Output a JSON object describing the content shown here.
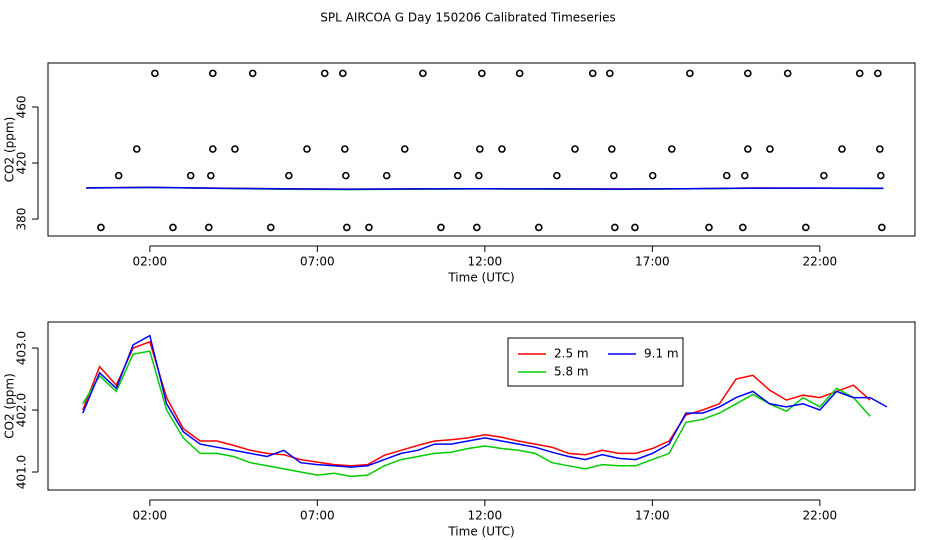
{
  "chart_data": [
    {
      "type": "scatter",
      "title": "SPL AIRCOA G  Day 150206  Calibrated Timeseries",
      "x_label": "Time (UTC)",
      "y_label": "CO2 (ppm)",
      "xlim": [
        -1.04,
        24.84
      ],
      "ylim": [
        367.9,
        491.4
      ],
      "xticks": [
        {
          "value": 2,
          "label": "02:00"
        },
        {
          "value": 7,
          "label": "07:00"
        },
        {
          "value": 12,
          "label": "12:00"
        },
        {
          "value": 17,
          "label": "17:00"
        },
        {
          "value": 22,
          "label": "22:00"
        }
      ],
      "yticks": [
        380,
        420,
        460
      ],
      "color": "#000000",
      "x": [
        2.15,
        3.88,
        5.07,
        7.22,
        7.76,
        10.15,
        11.91,
        13.04,
        15.22,
        15.73,
        18.12,
        19.85,
        21.04,
        23.19,
        23.73,
        1.61,
        3.88,
        4.54,
        6.69,
        7.82,
        9.61,
        11.85,
        12.51,
        14.69,
        15.79,
        17.58,
        19.85,
        20.51,
        22.66,
        23.79,
        1.07,
        3.22,
        3.82,
        6.15,
        7.85,
        9.07,
        11.19,
        11.82,
        14.15,
        15.85,
        17.01,
        19.22,
        19.76,
        22.12,
        23.82,
        0.54,
        2.69,
        3.76,
        5.61,
        7.88,
        8.54,
        10.69,
        11.76,
        13.61,
        15.88,
        16.48,
        18.69,
        19.7,
        21.58,
        23.85
      ],
      "values": [
        484,
        484,
        484,
        484,
        484,
        484,
        484,
        484,
        484,
        484,
        484,
        484,
        484,
        484,
        484,
        430,
        430,
        430,
        430,
        430,
        430,
        430,
        430,
        430,
        430,
        430,
        430,
        430,
        430,
        430,
        411,
        411,
        411,
        411,
        411,
        411,
        411,
        411,
        411,
        411,
        411,
        411,
        411,
        411,
        411,
        374,
        374,
        374,
        374,
        374,
        374,
        374,
        374,
        374,
        374,
        374,
        374,
        374,
        374,
        374
      ],
      "lines": {
        "x": [
          0.1,
          2,
          4,
          6,
          8,
          10,
          12,
          14,
          16,
          18,
          20,
          22,
          23.9
        ],
        "series": [
          {
            "color": "#ff0000",
            "values": [
              402.3,
              402.6,
              402.1,
              401.6,
              401.4,
              401.6,
              401.7,
              401.6,
              401.5,
              401.7,
              402.2,
              402.1,
              401.9
            ]
          },
          {
            "color": "#00cd00",
            "values": [
              402.2,
              402.5,
              401.9,
              401.3,
              401.0,
              401.3,
              401.5,
              401.3,
              401.2,
              401.5,
              402.0,
              402.0,
              401.8
            ]
          },
          {
            "color": "#0000ff",
            "values": [
              402.2,
              402.6,
              402.0,
              401.5,
              401.3,
              401.5,
              401.6,
              401.5,
              401.4,
              401.6,
              402.1,
              402.1,
              402.0
            ]
          }
        ]
      }
    },
    {
      "type": "line",
      "x_label": "Time (UTC)",
      "y_label": "CO2 (ppm)",
      "xlim": [
        -1.04,
        24.84
      ],
      "ylim": [
        400.71,
        403.42
      ],
      "xticks": [
        {
          "value": 2,
          "label": "02:00"
        },
        {
          "value": 7,
          "label": "07:00"
        },
        {
          "value": 12,
          "label": "12:00"
        },
        {
          "value": 17,
          "label": "17:00"
        },
        {
          "value": 22,
          "label": "22:00"
        }
      ],
      "yticks": [
        {
          "value": 401,
          "label": "401.0"
        },
        {
          "value": 402,
          "label": "402.0"
        },
        {
          "value": 403,
          "label": "403.0"
        }
      ],
      "legend": "top",
      "x": [
        0,
        0.5,
        1,
        1.5,
        2,
        2.5,
        3,
        3.5,
        4,
        4.5,
        5,
        5.5,
        6,
        6.5,
        7,
        7.5,
        8,
        8.5,
        9,
        9.5,
        10,
        10.5,
        11,
        11.5,
        12,
        12.5,
        13,
        13.5,
        14,
        14.5,
        15,
        15.5,
        16,
        16.5,
        17,
        17.5,
        18,
        18.5,
        19,
        19.5,
        20,
        20.5,
        21,
        21.5,
        22,
        22.5,
        23,
        23.5,
        24
      ],
      "series": [
        {
          "name": "2.5 m",
          "color": "#ff0000",
          "values": [
            402.0,
            402.7,
            402.4,
            403.0,
            403.1,
            402.2,
            401.7,
            401.5,
            401.5,
            401.43,
            401.35,
            401.3,
            401.28,
            401.2,
            401.16,
            401.12,
            401.1,
            401.12,
            401.27,
            401.35,
            401.43,
            401.5,
            401.52,
            401.55,
            401.6,
            401.56,
            401.5,
            401.45,
            401.4,
            401.3,
            401.28,
            401.35,
            401.3,
            401.3,
            401.38,
            401.5,
            401.92,
            402.0,
            402.1,
            402.5,
            402.56,
            402.32,
            402.16,
            402.24,
            402.2,
            402.3,
            402.4,
            402.16,
            null
          ]
        },
        {
          "name": "5.8 m",
          "color": "#00cd00",
          "values": [
            402.1,
            402.55,
            402.3,
            402.9,
            402.95,
            402.0,
            401.55,
            401.3,
            401.3,
            401.25,
            401.15,
            401.1,
            401.05,
            401.0,
            400.95,
            400.98,
            400.93,
            400.95,
            401.1,
            401.2,
            401.25,
            401.3,
            401.32,
            401.38,
            401.42,
            401.38,
            401.35,
            401.3,
            401.15,
            401.1,
            401.05,
            401.12,
            401.1,
            401.1,
            401.2,
            401.3,
            401.8,
            401.85,
            401.95,
            402.1,
            402.25,
            402.1,
            401.98,
            402.2,
            402.05,
            402.35,
            402.2,
            401.9,
            null
          ]
        },
        {
          "name": "9.1 m",
          "color": "#0000ff",
          "values": [
            401.95,
            402.6,
            402.35,
            403.05,
            403.2,
            402.1,
            401.65,
            401.45,
            401.4,
            401.35,
            401.3,
            401.25,
            401.35,
            401.15,
            401.12,
            401.1,
            401.08,
            401.1,
            401.2,
            401.3,
            401.35,
            401.45,
            401.45,
            401.5,
            401.55,
            401.5,
            401.45,
            401.4,
            401.32,
            401.25,
            401.2,
            401.28,
            401.22,
            401.2,
            401.3,
            401.45,
            401.95,
            401.95,
            402.05,
            402.2,
            402.3,
            402.1,
            402.05,
            402.1,
            402.0,
            402.3,
            402.2,
            402.2,
            402.05
          ]
        }
      ]
    }
  ]
}
